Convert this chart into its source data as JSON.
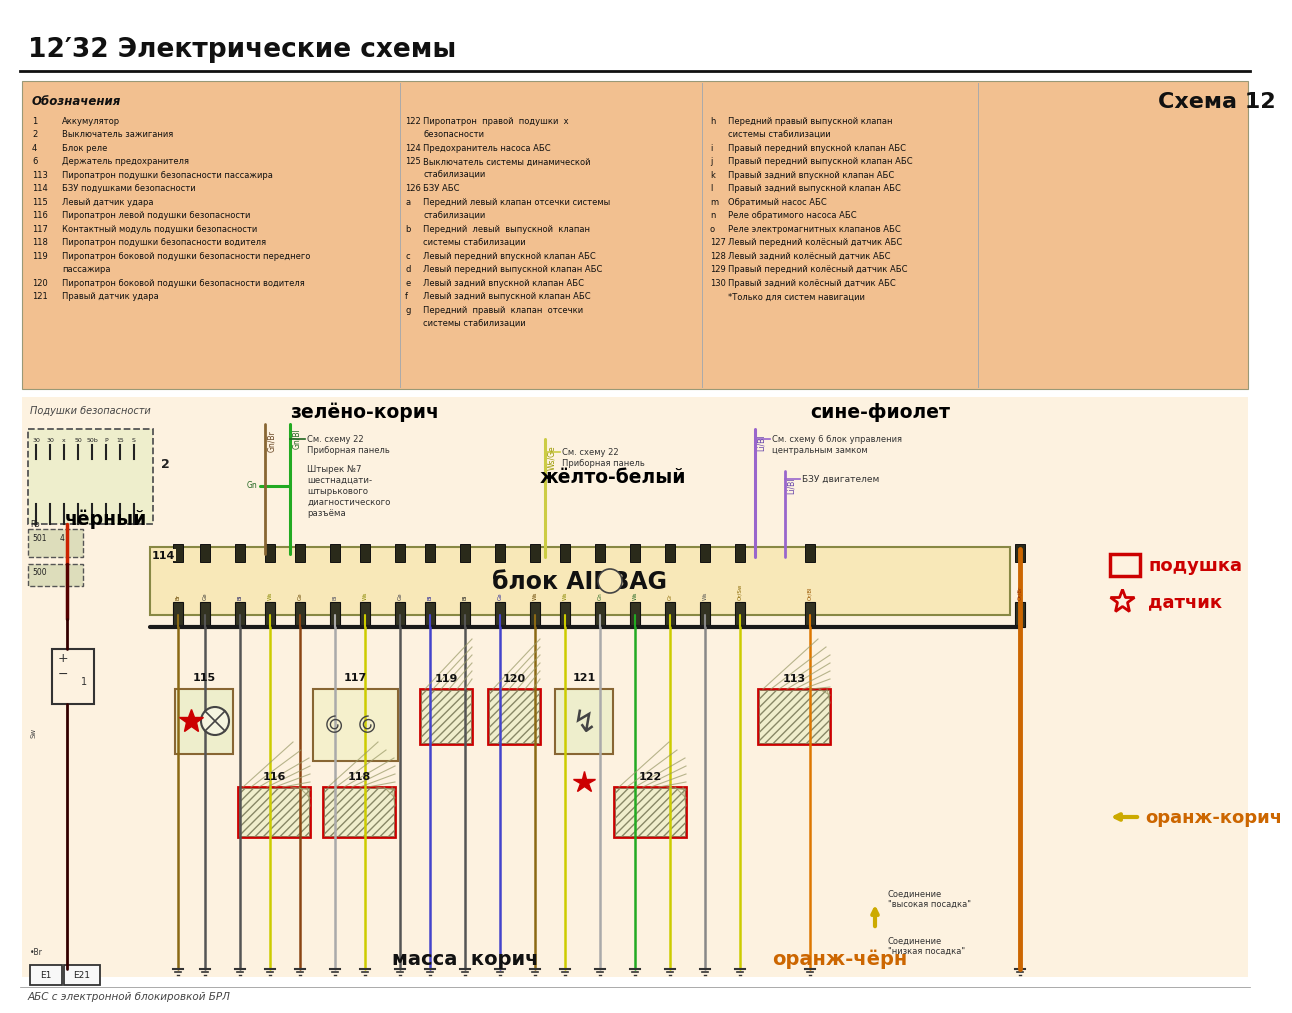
{
  "title": "12′32 Электрические схемы",
  "bottom_text": "АБС с электронной блокировкой БРЛ",
  "legend_bg": "#f2c090",
  "main_bg": "#ffffff",
  "diagram_bg": "#fdf0d8",
  "legend_title": "Обозначения",
  "schema_label": "Схема 12",
  "zeleno_korich": "зелёно-корич",
  "sine_fiolet": "сине-фиолет",
  "zheltyi_belyi": "жёлто-белый",
  "chernyi": "чёрный",
  "podushka": "подушка",
  "datchik": "датчик",
  "blok_airbag": "блок AIRBAG",
  "massa_korich": "масса  корич",
  "oranzhkorich": "оранж-корич",
  "oranzhchern": "оранж-чёрн",
  "podushki_bezop": "Подушки безопасности",
  "sm_shemu22": "См. схему 22",
  "pribornaya": "Приборная панель",
  "sm_shemu6": "См. схему 6 блок управления",
  "centralnym": "центральным замком",
  "shtyr7": "Штырек №7",
  "shestnadtsi": "шестнадцати-",
  "shtyrkovogo": "штырькового",
  "diagnostich": "диагностического",
  "razyema": "разъёма",
  "bzu_dvigat": "БЗУ двигателем",
  "soed_vysok": "Соединение\n\"высокая посадка\"",
  "soed_nizk": "Соединение\n\"низкая посадка\""
}
